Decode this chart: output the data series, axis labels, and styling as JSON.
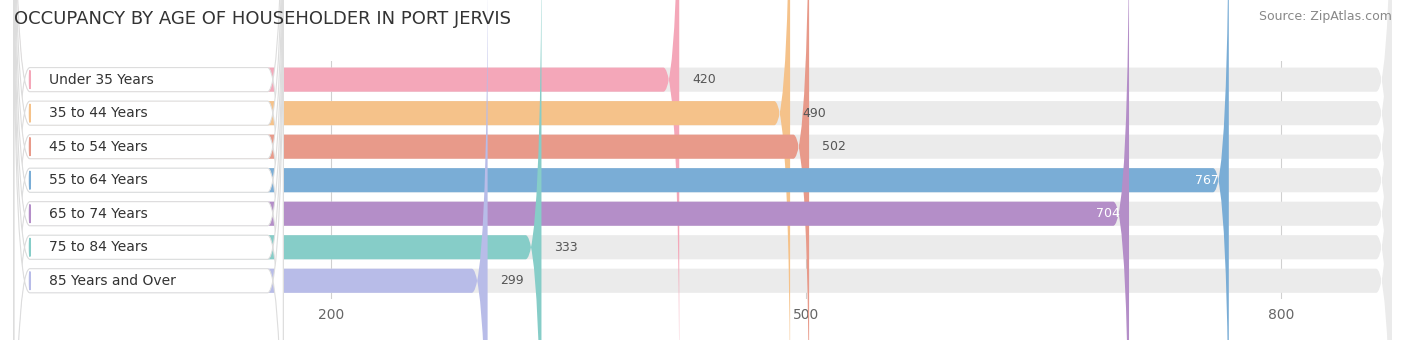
{
  "title": "OCCUPANCY BY AGE OF HOUSEHOLDER IN PORT JERVIS",
  "source": "Source: ZipAtlas.com",
  "categories": [
    "Under 35 Years",
    "35 to 44 Years",
    "45 to 54 Years",
    "55 to 64 Years",
    "65 to 74 Years",
    "75 to 84 Years",
    "85 Years and Over"
  ],
  "values": [
    420,
    490,
    502,
    767,
    704,
    333,
    299
  ],
  "bar_colors": [
    "#f4a7b9",
    "#f5c28a",
    "#e89a8a",
    "#7aadd6",
    "#b48ec8",
    "#86cdc8",
    "#b8bce8"
  ],
  "bar_bg_color": "#ebebeb",
  "label_bg_color": "#ffffff",
  "label_colors": [
    "#555555",
    "#555555",
    "#555555",
    "#ffffff",
    "#ffffff",
    "#555555",
    "#555555"
  ],
  "xlim_max": 870,
  "xticks": [
    200,
    500,
    800
  ],
  "title_fontsize": 13,
  "source_fontsize": 9,
  "label_fontsize": 10,
  "value_fontsize": 9,
  "bar_height": 0.72,
  "background_color": "#ffffff",
  "grid_color": "#d0d0d0"
}
